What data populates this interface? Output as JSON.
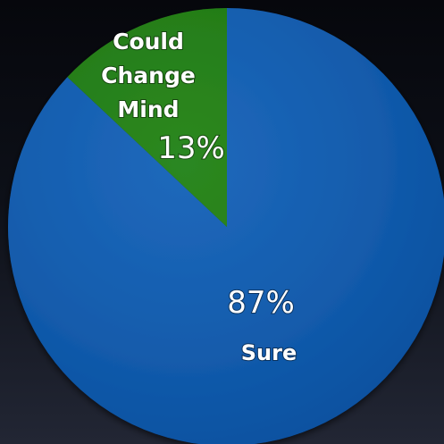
{
  "chart_data": {
    "type": "pie",
    "title": "",
    "slices": [
      {
        "label": "Sure",
        "value": 87,
        "display": "87%",
        "color": "#0a5bb5"
      },
      {
        "label": "Could Change Mind",
        "value": 13,
        "display": "13%",
        "color": "#1a7d0d"
      }
    ],
    "start_angle_deg": 0,
    "direction": "clockwise",
    "legend": "none"
  }
}
